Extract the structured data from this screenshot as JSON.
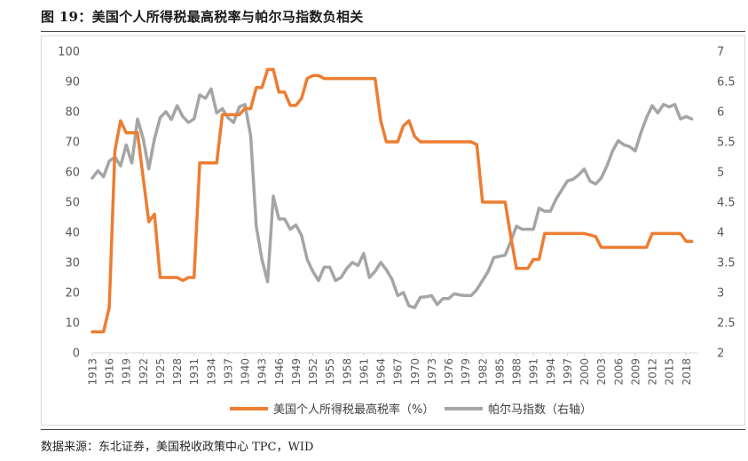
{
  "figure": {
    "title": "图 19：美国个人所得税最高税率与帕尔马指数负相关",
    "source": "数据来源：东北证券，美国税收政策中心 TPC，WID"
  },
  "colors": {
    "tax": "#ED7D31",
    "palma": "#A5A5A5",
    "axis": "#D9D9D9",
    "text": "#595959"
  },
  "chart_data": {
    "type": "line",
    "title": "",
    "xlabel": "",
    "ylabel": "",
    "xlim": [
      1913,
      2020
    ],
    "ylim": [
      0,
      100
    ],
    "y2lim": [
      2,
      7
    ],
    "x_ticks": [
      1913,
      1916,
      1919,
      1922,
      1925,
      1928,
      1931,
      1934,
      1937,
      1940,
      1943,
      1946,
      1949,
      1952,
      1955,
      1958,
      1961,
      1964,
      1967,
      1970,
      1973,
      1976,
      1979,
      1982,
      1985,
      1988,
      1991,
      1994,
      1997,
      2000,
      2003,
      2006,
      2009,
      2012,
      2015,
      2018
    ],
    "y_ticks": [
      0,
      10,
      20,
      30,
      40,
      50,
      60,
      70,
      80,
      90,
      100
    ],
    "y2_ticks": [
      "2",
      "2.5",
      "3",
      "3.5",
      "4",
      "4.5",
      "5",
      "5.5",
      "6",
      "6.5",
      "7"
    ],
    "grid": false,
    "legend_position": "bottom",
    "series": [
      {
        "name": "美国个人所得税最高税率（%）",
        "axis": "left",
        "x": [
          1913,
          1914,
          1915,
          1916,
          1917,
          1918,
          1919,
          1920,
          1921,
          1922,
          1923,
          1924,
          1925,
          1926,
          1927,
          1928,
          1929,
          1930,
          1931,
          1932,
          1933,
          1934,
          1935,
          1936,
          1937,
          1938,
          1939,
          1940,
          1941,
          1942,
          1943,
          1944,
          1945,
          1946,
          1947,
          1948,
          1949,
          1950,
          1951,
          1952,
          1953,
          1954,
          1955,
          1956,
          1957,
          1958,
          1959,
          1960,
          1961,
          1962,
          1963,
          1964,
          1965,
          1966,
          1967,
          1968,
          1969,
          1970,
          1971,
          1972,
          1973,
          1974,
          1975,
          1976,
          1977,
          1978,
          1979,
          1980,
          1981,
          1982,
          1983,
          1984,
          1985,
          1986,
          1987,
          1988,
          1989,
          1990,
          1991,
          1992,
          1993,
          1994,
          1995,
          1996,
          1997,
          1998,
          1999,
          2000,
          2001,
          2002,
          2003,
          2004,
          2005,
          2006,
          2007,
          2008,
          2009,
          2010,
          2011,
          2012,
          2013,
          2014,
          2015,
          2016,
          2017,
          2018,
          2019
        ],
        "values": [
          7,
          7,
          7,
          15,
          67,
          77,
          73,
          73,
          73,
          58,
          43.5,
          46,
          25,
          25,
          25,
          25,
          24,
          25,
          25,
          63,
          63,
          63,
          63,
          79,
          79,
          79,
          79,
          81.1,
          81,
          88,
          88,
          94,
          94,
          86.5,
          86.5,
          82.1,
          82.1,
          84.4,
          91,
          92,
          92,
          91,
          91,
          91,
          91,
          91,
          91,
          91,
          91,
          91,
          91,
          77,
          70,
          70,
          70,
          75.3,
          77,
          71.8,
          70,
          70,
          70,
          70,
          70,
          70,
          70,
          70,
          70,
          70,
          69.1,
          50,
          50,
          50,
          50,
          50,
          38.5,
          28,
          28,
          28,
          31,
          31,
          39.6,
          39.6,
          39.6,
          39.6,
          39.6,
          39.6,
          39.6,
          39.6,
          39.1,
          38.6,
          35,
          35,
          35,
          35,
          35,
          35,
          35,
          35,
          35,
          39.6,
          39.6,
          39.6,
          39.6,
          39.6,
          39.6,
          37,
          37
        ]
      },
      {
        "name": "帕尔马指数（右轴）",
        "axis": "right",
        "x": [
          1913,
          1914,
          1915,
          1916,
          1917,
          1918,
          1919,
          1920,
          1921,
          1922,
          1923,
          1924,
          1925,
          1926,
          1927,
          1928,
          1929,
          1930,
          1931,
          1932,
          1933,
          1934,
          1935,
          1936,
          1937,
          1938,
          1939,
          1940,
          1941,
          1942,
          1943,
          1944,
          1945,
          1946,
          1947,
          1948,
          1949,
          1950,
          1951,
          1952,
          1953,
          1954,
          1955,
          1956,
          1957,
          1958,
          1959,
          1960,
          1961,
          1962,
          1963,
          1964,
          1965,
          1966,
          1967,
          1968,
          1969,
          1970,
          1971,
          1972,
          1973,
          1974,
          1975,
          1976,
          1977,
          1978,
          1979,
          1980,
          1981,
          1982,
          1983,
          1984,
          1985,
          1986,
          1987,
          1988,
          1989,
          1990,
          1991,
          1992,
          1993,
          1994,
          1995,
          1996,
          1997,
          1998,
          1999,
          2000,
          2001,
          2002,
          2003,
          2004,
          2005,
          2006,
          2007,
          2008,
          2009,
          2010,
          2011,
          2012,
          2013,
          2014,
          2015,
          2016,
          2017,
          2018,
          2019
        ],
        "values": [
          4.9,
          5.02,
          4.92,
          5.18,
          5.25,
          5.1,
          5.45,
          5.15,
          5.88,
          5.55,
          5.05,
          5.55,
          5.9,
          6.0,
          5.87,
          6.1,
          5.92,
          5.82,
          5.88,
          6.28,
          6.22,
          6.38,
          5.98,
          6.05,
          5.9,
          5.82,
          6.08,
          6.12,
          5.6,
          4.1,
          3.55,
          3.18,
          4.6,
          4.22,
          4.22,
          4.05,
          4.12,
          3.95,
          3.55,
          3.35,
          3.2,
          3.42,
          3.42,
          3.2,
          3.25,
          3.4,
          3.5,
          3.45,
          3.65,
          3.25,
          3.35,
          3.5,
          3.38,
          3.22,
          2.95,
          3.0,
          2.78,
          2.75,
          2.92,
          2.93,
          2.95,
          2.8,
          2.9,
          2.9,
          2.98,
          2.96,
          2.95,
          2.95,
          3.05,
          3.2,
          3.35,
          3.58,
          3.6,
          3.62,
          3.85,
          4.1,
          4.05,
          4.05,
          4.05,
          4.4,
          4.35,
          4.35,
          4.55,
          4.7,
          4.85,
          4.88,
          4.95,
          5.05,
          4.85,
          4.8,
          4.9,
          5.1,
          5.35,
          5.52,
          5.45,
          5.42,
          5.35,
          5.65,
          5.9,
          6.1,
          5.98,
          6.12,
          6.08,
          6.12,
          5.88,
          5.92,
          5.88
        ]
      }
    ]
  }
}
